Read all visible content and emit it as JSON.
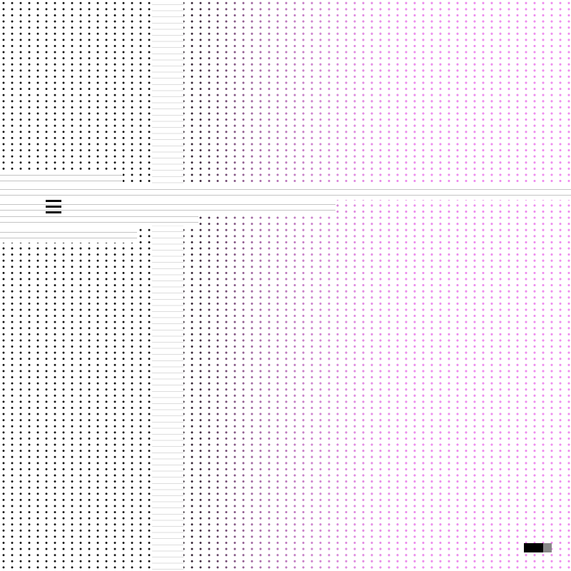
{
  "colors": {
    "background": "#ffffff",
    "dot_dark": "#111111",
    "dot_pink": "#f08cf0",
    "bar_dark": "#000000",
    "bar_light": "#888888"
  },
  "icons": {
    "menu": "hamburger-icon"
  },
  "indicator": {
    "fill_fraction": 0.7
  }
}
